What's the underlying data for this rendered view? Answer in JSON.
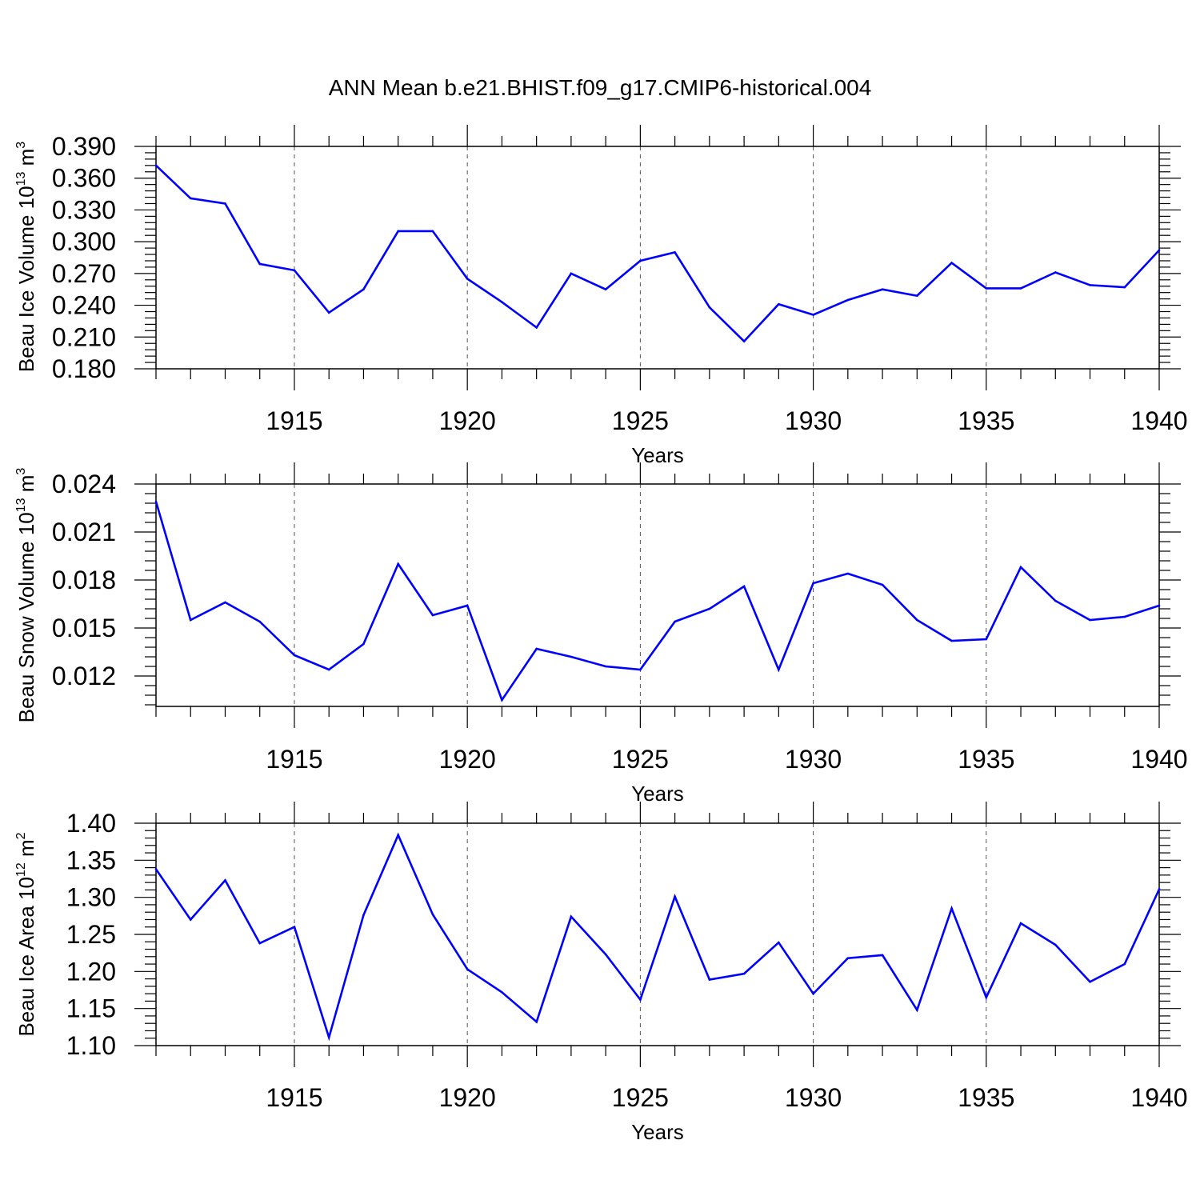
{
  "title": "ANN Mean b.e21.BHIST.f09_g17.CMIP6-historical.004",
  "series_color": "#0000ff",
  "chart_data": [
    {
      "type": "line",
      "title": "ANN Mean b.e21.BHIST.f09_g17.CMIP6-historical.004",
      "ylabel_main": "Beau Ice Volume 10",
      "ylabel_exp": "13",
      "ylabel_unit": " m",
      "ylabel_unit_exp": "3",
      "xlabel": "Years",
      "xlim": [
        1911,
        1940
      ],
      "ylim": [
        0.18,
        0.39
      ],
      "yticks": [
        0.18,
        0.21,
        0.24,
        0.27,
        0.3,
        0.33,
        0.36,
        0.39
      ],
      "ytick_labels": [
        "0.180",
        "0.210",
        "0.240",
        "0.270",
        "0.300",
        "0.330",
        "0.360",
        "0.390"
      ],
      "xticks": [
        1915,
        1920,
        1925,
        1930,
        1935,
        1940
      ],
      "xtick_labels": [
        "1915",
        "1920",
        "1925",
        "1930",
        "1935",
        "1940"
      ],
      "grid_x": true,
      "x": [
        1911,
        1912,
        1913,
        1914,
        1915,
        1916,
        1917,
        1918,
        1919,
        1920,
        1921,
        1922,
        1923,
        1924,
        1925,
        1926,
        1927,
        1928,
        1929,
        1930,
        1931,
        1932,
        1933,
        1934,
        1935,
        1936,
        1937,
        1938,
        1939,
        1940
      ],
      "values": [
        0.372,
        0.341,
        0.336,
        0.279,
        0.273,
        0.233,
        0.255,
        0.31,
        0.31,
        0.265,
        0.243,
        0.219,
        0.27,
        0.255,
        0.282,
        0.29,
        0.238,
        0.206,
        0.241,
        0.231,
        0.245,
        0.255,
        0.249,
        0.28,
        0.256,
        0.256,
        0.271,
        0.259,
        0.257,
        0.292
      ]
    },
    {
      "type": "line",
      "ylabel_main": "Beau Snow Volume 10",
      "ylabel_exp": "13",
      "ylabel_unit": " m",
      "ylabel_unit_exp": "3",
      "xlabel": "Years",
      "xlim": [
        1911,
        1940
      ],
      "ylim": [
        0.0101,
        0.024
      ],
      "yticks": [
        0.012,
        0.015,
        0.018,
        0.021,
        0.024
      ],
      "ytick_labels": [
        "0.012",
        "0.015",
        "0.018",
        "0.021",
        "0.024"
      ],
      "xticks": [
        1915,
        1920,
        1925,
        1930,
        1935,
        1940
      ],
      "xtick_labels": [
        "1915",
        "1920",
        "1925",
        "1930",
        "1935",
        "1940"
      ],
      "grid_x": true,
      "x": [
        1911,
        1912,
        1913,
        1914,
        1915,
        1916,
        1917,
        1918,
        1919,
        1920,
        1921,
        1922,
        1923,
        1924,
        1925,
        1926,
        1927,
        1928,
        1929,
        1930,
        1931,
        1932,
        1933,
        1934,
        1935,
        1936,
        1937,
        1938,
        1939,
        1940
      ],
      "values": [
        0.0229,
        0.0155,
        0.0166,
        0.0154,
        0.0133,
        0.0124,
        0.014,
        0.019,
        0.0158,
        0.0164,
        0.0105,
        0.0137,
        0.0132,
        0.0126,
        0.0124,
        0.0154,
        0.0162,
        0.0176,
        0.0124,
        0.0178,
        0.0184,
        0.0177,
        0.0155,
        0.0142,
        0.0143,
        0.0188,
        0.0167,
        0.0155,
        0.0157,
        0.0164
      ]
    },
    {
      "type": "line",
      "ylabel_main": "Beau Ice Area 10",
      "ylabel_exp": "12",
      "ylabel_unit": " m",
      "ylabel_unit_exp": "2",
      "xlabel": "Years",
      "xlim": [
        1911,
        1940
      ],
      "ylim": [
        1.1,
        1.4
      ],
      "yticks": [
        1.1,
        1.15,
        1.2,
        1.25,
        1.3,
        1.35,
        1.4
      ],
      "ytick_labels": [
        "1.10",
        "1.15",
        "1.20",
        "1.25",
        "1.30",
        "1.35",
        "1.40"
      ],
      "xticks": [
        1915,
        1920,
        1925,
        1930,
        1935,
        1940
      ],
      "xtick_labels": [
        "1915",
        "1920",
        "1925",
        "1930",
        "1935",
        "1940"
      ],
      "grid_x": true,
      "x": [
        1911,
        1912,
        1913,
        1914,
        1915,
        1916,
        1917,
        1918,
        1919,
        1920,
        1921,
        1922,
        1923,
        1924,
        1925,
        1926,
        1927,
        1928,
        1929,
        1930,
        1931,
        1932,
        1933,
        1934,
        1935,
        1936,
        1937,
        1938,
        1939,
        1940
      ],
      "values": [
        1.338,
        1.27,
        1.323,
        1.238,
        1.26,
        1.111,
        1.276,
        1.384,
        1.277,
        1.203,
        1.172,
        1.132,
        1.274,
        1.223,
        1.162,
        1.301,
        1.189,
        1.197,
        1.239,
        1.17,
        1.218,
        1.222,
        1.148,
        1.285,
        1.165,
        1.265,
        1.236,
        1.186,
        1.21,
        1.311
      ]
    }
  ]
}
